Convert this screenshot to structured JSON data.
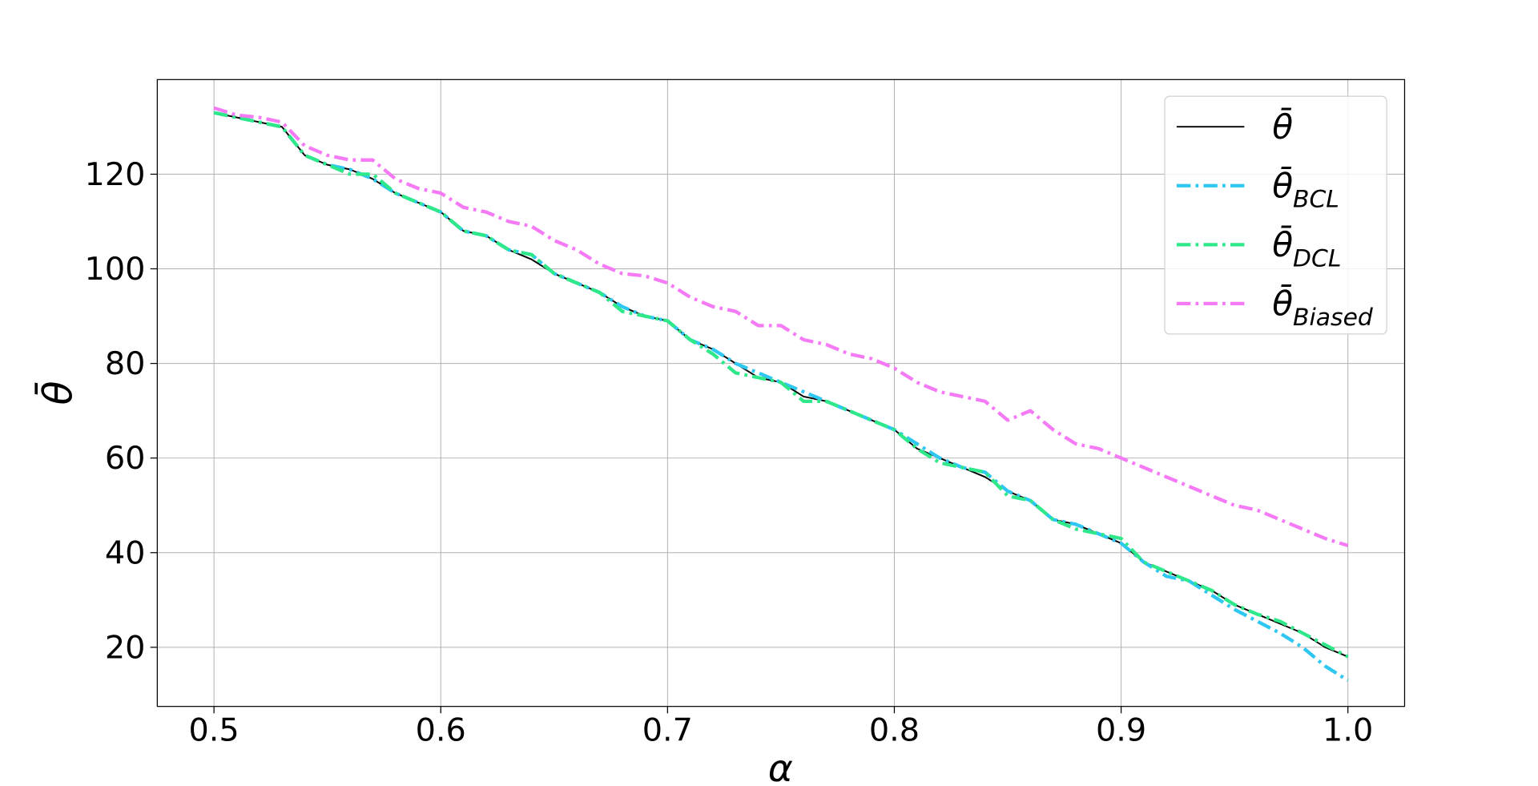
{
  "chart_data": {
    "type": "line",
    "xlabel": "α",
    "ylabel": "θ̄",
    "x": [
      0.5,
      0.51,
      0.52,
      0.53,
      0.54,
      0.55,
      0.56,
      0.57,
      0.58,
      0.59,
      0.6,
      0.61,
      0.62,
      0.63,
      0.64,
      0.65,
      0.66,
      0.67,
      0.68,
      0.69,
      0.7,
      0.71,
      0.72,
      0.73,
      0.74,
      0.75,
      0.76,
      0.77,
      0.78,
      0.79,
      0.8,
      0.81,
      0.82,
      0.83,
      0.84,
      0.85,
      0.86,
      0.87,
      0.88,
      0.89,
      0.9,
      0.91,
      0.92,
      0.93,
      0.94,
      0.95,
      0.96,
      0.97,
      0.98,
      0.99,
      1.0
    ],
    "series": [
      {
        "name": "θ̄",
        "color": "#000000",
        "dash": "none",
        "width": 1.6,
        "values": [
          133,
          132,
          131,
          130,
          124,
          122,
          121,
          119,
          116,
          114,
          112,
          108,
          107,
          104,
          102,
          99,
          97,
          95,
          92,
          90,
          89,
          85,
          83,
          80,
          77,
          76,
          73,
          72,
          70,
          68,
          66,
          62,
          60,
          58,
          56,
          53,
          51,
          47,
          46,
          44,
          42,
          38,
          36,
          34,
          32,
          29,
          27,
          25,
          23,
          20,
          18
        ]
      },
      {
        "name": "θ̄",
        "sub": "BCL",
        "color": "#2ec7f2",
        "dash": "14 5 3 5",
        "width": 3.5,
        "values": [
          133,
          132,
          131,
          130,
          124,
          122,
          121,
          119,
          116,
          114,
          112,
          108,
          107,
          104,
          103,
          99,
          97,
          95,
          92,
          90,
          89,
          85,
          83,
          80,
          78,
          76,
          74,
          72,
          70,
          68,
          66,
          63,
          60,
          58,
          57,
          53,
          51,
          47,
          46,
          44,
          42,
          38,
          35,
          34,
          31,
          28,
          25.5,
          23,
          20,
          16,
          13
        ]
      },
      {
        "name": "θ̄",
        "sub": "DCL",
        "color": "#2ee88a",
        "dash": "14 5 3 5",
        "width": 3.5,
        "values": [
          133,
          132,
          131,
          130,
          124,
          122,
          120,
          120,
          116,
          114,
          112,
          108,
          107,
          104,
          103,
          99,
          97,
          95,
          91,
          90,
          89,
          85,
          82,
          78,
          77,
          76,
          72,
          72,
          70,
          68,
          66,
          62,
          59,
          58,
          57,
          52,
          51,
          47,
          45,
          44,
          43,
          38,
          36,
          34,
          32,
          29,
          27,
          25.5,
          23,
          20.5,
          18
        ]
      },
      {
        "name": "θ̄",
        "sub": "Biased",
        "color": "#f57af5",
        "dash": "14 5 3 5",
        "width": 3.5,
        "values": [
          134,
          132.5,
          132,
          131,
          126,
          124,
          123,
          123,
          119,
          117,
          116,
          113,
          112,
          110,
          109,
          106,
          104,
          101,
          99,
          98.5,
          97,
          94,
          92,
          91,
          88,
          88,
          85,
          84,
          82,
          81,
          79,
          76,
          74,
          73,
          72,
          68,
          70,
          66,
          63,
          62,
          60,
          58,
          56,
          54,
          52,
          50,
          49,
          47,
          45,
          43,
          41.5
        ]
      }
    ],
    "xlim": [
      0.475,
      1.025
    ],
    "ylim": [
      7.5,
      140
    ],
    "xticks": [
      0.5,
      0.6,
      0.7,
      0.8,
      0.9,
      {
        "value": 1,
        "label": "1.0"
      }
    ],
    "yticks": [
      20,
      40,
      60,
      80,
      100,
      120
    ],
    "grid": true,
    "legend": "upper-right"
  }
}
